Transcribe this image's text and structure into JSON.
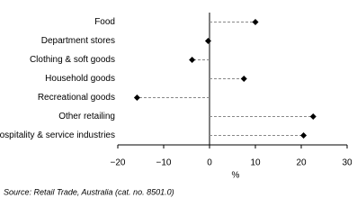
{
  "chart_data": {
    "type": "dot",
    "orientation": "horizontal",
    "categories": [
      "Food",
      "Department stores",
      "Clothing & soft goods",
      "Household goods",
      "Recreational goods",
      "Other retailing",
      "Hospitality & service industries"
    ],
    "values": [
      10,
      -0.3,
      -3.8,
      7.5,
      -15.8,
      22.6,
      20.5
    ],
    "color": "#000000",
    "xlim": [
      -20,
      30
    ],
    "xticks": [
      {
        "value": -20,
        "label": "−20"
      },
      {
        "value": -10,
        "label": "−10"
      },
      0,
      10,
      20,
      30
    ],
    "xlabel": "%",
    "source": "Source: Retail Trade, Australia (cat. no. 8501.0)"
  }
}
